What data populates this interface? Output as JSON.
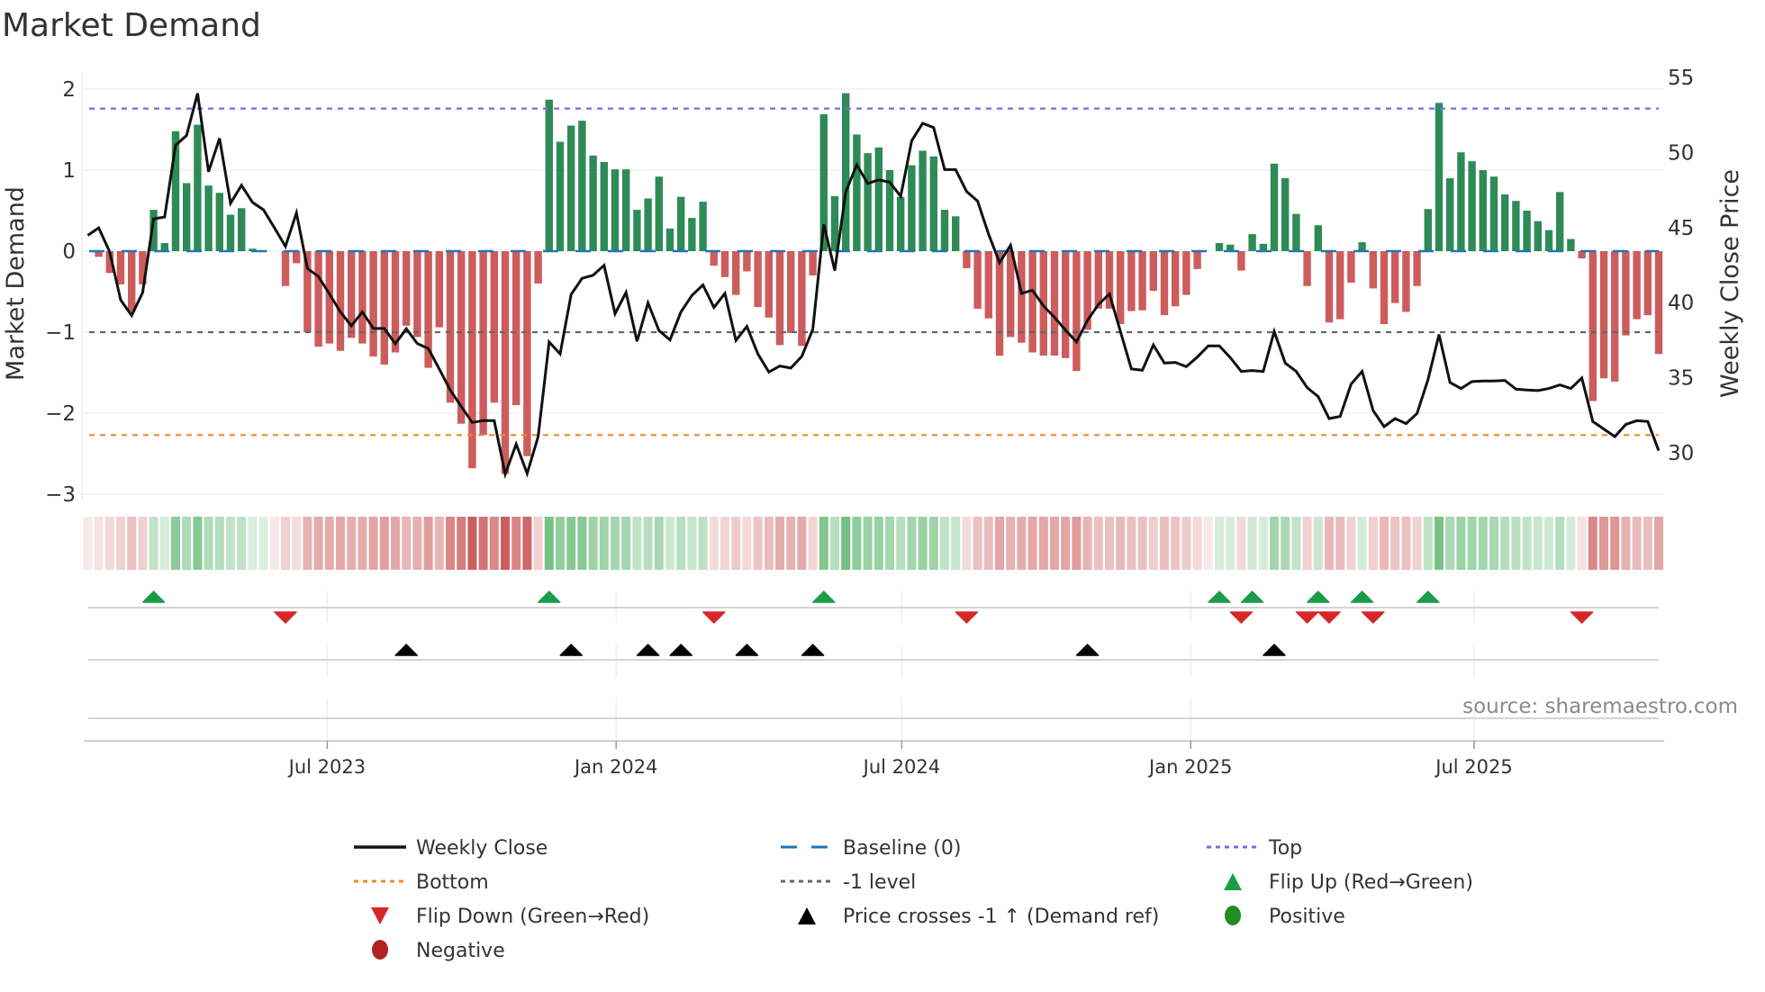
{
  "chart_data": {
    "type": "bar",
    "title": "Market Demand",
    "ylabel": "Market Demand",
    "y2label": "Weekly Close Price",
    "source": "source: sharemaestro.com",
    "ylim": [
      -3,
      2
    ],
    "y2lim": [
      30,
      55
    ],
    "yticks": [
      2,
      1,
      0,
      -1,
      -2,
      -3
    ],
    "ytick_labels": [
      "2",
      "1",
      "0",
      "−1",
      "−2",
      "−3"
    ],
    "y2ticks": [
      55,
      50,
      45,
      40,
      35,
      30
    ],
    "y2tick_labels": [
      "55",
      "50",
      "45",
      "40",
      "35",
      "30"
    ],
    "xticks": [
      {
        "label": "Jul 2023",
        "week": 21.8
      },
      {
        "label": "Jan 2024",
        "week": 48.1
      },
      {
        "label": "Jul 2024",
        "week": 74.1
      },
      {
        "label": "Jan 2025",
        "week": 100.4
      },
      {
        "label": "Jul 2025",
        "week": 126.2
      }
    ],
    "levels": {
      "top": 1.76,
      "bottom": -2.27,
      "minus_one": -1,
      "baseline": 0
    },
    "colors": {
      "positive_bar": "#2e8b57",
      "negative_bar": "#cd5c5c",
      "line": "#111111",
      "top": "#7b68ee",
      "bottom": "#f08a24",
      "minus_one": "#666666",
      "baseline": "#1f77b4",
      "flip_up": "#1a9c4a",
      "flip_down": "#d62728",
      "price_cross": "#000000",
      "positive": "#228b22",
      "negative": "#b22222"
    },
    "demand": [
      0,
      -0.07,
      -0.27,
      -0.41,
      -0.75,
      -0.41,
      0.51,
      0.1,
      1.48,
      0.84,
      1.56,
      0.81,
      0.72,
      0.45,
      0.53,
      0.03,
      0.01,
      0,
      -0.43,
      -0.15,
      -1.0,
      -1.18,
      -1.14,
      -1.23,
      -1.07,
      -1.14,
      -1.3,
      -1.4,
      -1.25,
      -0.92,
      -1.06,
      -1.44,
      -0.94,
      -1.87,
      -2.13,
      -2.68,
      -2.27,
      -1.87,
      -2.75,
      -1.9,
      -2.53,
      -0.4,
      1.87,
      1.35,
      1.55,
      1.61,
      1.18,
      1.1,
      1.01,
      1.01,
      0.51,
      0.65,
      0.92,
      0.28,
      0.67,
      0.41,
      0.61,
      -0.18,
      -0.32,
      -0.54,
      -0.25,
      -0.69,
      -0.82,
      -1.16,
      -1.01,
      -1.17,
      -0.3,
      1.69,
      0.68,
      1.95,
      1.44,
      1.21,
      1.28,
      1.0,
      0.67,
      1.06,
      1.24,
      1.17,
      0.51,
      0.43,
      -0.21,
      -0.71,
      -0.83,
      -1.29,
      -1.06,
      -1.13,
      -1.25,
      -1.29,
      -1.29,
      -1.32,
      -1.48,
      -0.97,
      -0.71,
      -0.71,
      -0.9,
      -0.74,
      -0.73,
      -0.49,
      -0.79,
      -0.68,
      -0.54,
      -0.22,
      0,
      0.1,
      0.08,
      -0.24,
      0.21,
      0.09,
      1.08,
      0.9,
      0.46,
      -0.43,
      0.32,
      -0.88,
      -0.84,
      -0.39,
      0.11,
      -0.46,
      -0.9,
      -0.64,
      -0.75,
      -0.43,
      0.52,
      1.83,
      0.9,
      1.22,
      1.11,
      1.0,
      0.92,
      0.7,
      0.62,
      0.5,
      0.37,
      0.26,
      0.73,
      0.15,
      -0.09,
      -1.85,
      -1.57,
      -1.61,
      -1.04,
      -0.84,
      -0.79,
      -1.27
    ],
    "close": [
      44.48,
      44.98,
      43.38,
      40.18,
      39.14,
      40.68,
      45.58,
      45.7,
      50.48,
      51.14,
      53.94,
      48.72,
      50.94,
      46.62,
      47.82,
      46.68,
      46.18,
      44.98,
      43.74,
      45.98,
      42.28,
      41.74,
      40.58,
      39.38,
      38.46,
      39.38,
      38.28,
      38.28,
      37.26,
      38.26,
      37.28,
      36.94,
      35.58,
      34.18,
      33.08,
      32.02,
      32.14,
      32.14,
      28.58,
      30.58,
      28.62,
      31.08,
      37.38,
      36.58,
      40.54,
      41.62,
      41.82,
      42.48,
      39.26,
      40.68,
      37.42,
      39.98,
      38.14,
      37.52,
      39.38,
      40.48,
      41.18,
      39.68,
      40.62,
      37.48,
      38.42,
      36.58,
      35.38,
      35.78,
      35.64,
      36.42,
      38.22,
      45.22,
      42.14,
      47.38,
      49.18,
      47.94,
      48.18,
      48.02,
      47.08,
      50.78,
      51.94,
      51.66,
      48.86,
      48.86,
      47.4,
      46.76,
      44.56,
      42.66,
      43.82,
      40.62,
      40.82,
      39.78,
      39.02,
      38.18,
      37.38,
      38.82,
      39.88,
      40.58,
      38.08,
      35.58,
      35.5,
      37.18,
      35.98,
      36.02,
      35.74,
      36.38,
      37.12,
      37.12,
      36.34,
      35.42,
      35.48,
      35.42,
      38.08,
      35.98,
      35.42,
      34.34,
      33.74,
      32.28,
      32.42,
      34.58,
      35.42,
      32.82,
      31.74,
      32.28,
      31.94,
      32.62,
      34.88,
      37.88,
      34.68,
      34.28,
      34.74,
      34.78,
      34.78,
      34.82,
      34.24,
      34.18,
      34.14,
      34.28,
      34.52,
      34.28,
      34.98,
      32.08,
      31.58,
      31.08,
      31.88,
      32.14,
      32.08,
      30.14
    ],
    "events": {
      "flip_up": [
        6,
        42,
        67,
        103,
        106,
        112,
        116,
        122
      ],
      "flip_down": [
        18,
        57,
        80,
        105,
        111,
        113,
        117,
        136
      ],
      "price_cross": [
        29,
        44,
        51,
        54,
        60,
        66,
        91,
        108
      ]
    },
    "legend": [
      {
        "label": "Weekly Close",
        "symbol": "solid",
        "color": "#111111"
      },
      {
        "label": "Baseline (0)",
        "symbol": "dashed",
        "color": "#1f77b4"
      },
      {
        "label": "Top",
        "symbol": "dotted",
        "color": "#7b68ee"
      },
      {
        "label": "Bottom",
        "symbol": "dotted",
        "color": "#f08a24"
      },
      {
        "label": "-1 level",
        "symbol": "dotted",
        "color": "#666666"
      },
      {
        "label": "Flip Up (Red→Green)",
        "symbol": "tri-up",
        "color": "#1a9c4a"
      },
      {
        "label": "Flip Down (Green→Red)",
        "symbol": "tri-down",
        "color": "#d62728"
      },
      {
        "label": "Price crosses -1 ↑ (Demand ref)",
        "symbol": "tri-up",
        "color": "#000000"
      },
      {
        "label": "Positive",
        "symbol": "dot",
        "color": "#228b22"
      },
      {
        "label": "Negative",
        "symbol": "dot",
        "color": "#b22222"
      }
    ],
    "legend_position": "bottom"
  }
}
